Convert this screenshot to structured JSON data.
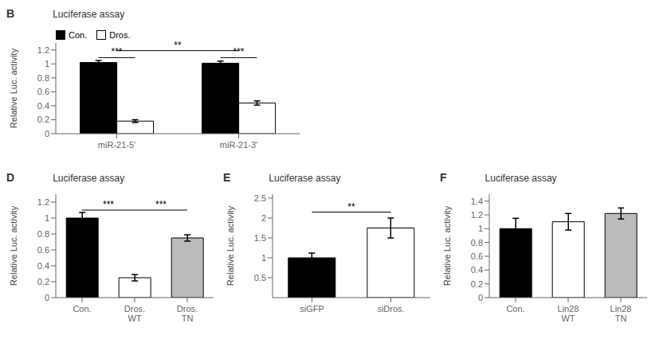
{
  "chart_data": [
    {
      "type": "bar",
      "title": "Luciferase assay",
      "categories": [
        "miR-21-5'",
        "miR-21-3'"
      ],
      "series": [
        {
          "name": "Con.",
          "color": "#000000",
          "values": [
            1.02,
            1.01
          ],
          "errors": [
            0.03,
            0.03
          ]
        },
        {
          "name": "Dros.",
          "color": "#ffffff",
          "values": [
            0.18,
            0.44
          ],
          "errors": [
            0.02,
            0.03
          ]
        }
      ],
      "ylabel": "Relative Luc. activity",
      "ylim": [
        0,
        1.3
      ],
      "yticks": [
        0,
        0.2,
        0.4,
        0.6,
        0.8,
        1.0,
        1.2
      ],
      "legend": "upper left",
      "annotations": [
        {
          "text": "B"
        },
        {
          "text": "***",
          "y": 1.09,
          "category": "miR-21-5'"
        },
        {
          "text": "**",
          "y": 1.19,
          "categories": [
            "miR-21-5'",
            "miR-21-3'"
          ]
        },
        {
          "text": "***",
          "y": 1.09,
          "category": "miR-21-3'"
        }
      ]
    },
    {
      "type": "bar",
      "title": "Luciferase assay",
      "categories": [
        "Con.",
        "Dros.\nWT",
        "Dros.\nTN"
      ],
      "values": [
        1.0,
        0.25,
        0.75
      ],
      "errors": [
        0.07,
        0.04,
        0.04
      ],
      "colors": [
        "#000000",
        "#ffffff",
        "#bbbbbb"
      ],
      "ylabel": "Relative Luc. activity",
      "ylim": [
        0,
        1.3
      ],
      "yticks": [
        0,
        0.2,
        0.4,
        0.6,
        0.8,
        1.0,
        1.2
      ],
      "annotations": [
        {
          "text": "D"
        },
        {
          "text": "***",
          "y": 1.1,
          "categories": [
            "Con.",
            "Dros.\nWT"
          ]
        },
        {
          "text": "***",
          "y": 1.1,
          "categories": [
            "Dros.\nWT",
            "Dros.\nTN"
          ]
        }
      ]
    },
    {
      "type": "bar",
      "title": "Luciferase assay",
      "categories": [
        "siGFP",
        "siDros."
      ],
      "values": [
        1.0,
        1.75
      ],
      "errors": [
        0.12,
        0.25
      ],
      "colors": [
        "#000000",
        "#ffffff"
      ],
      "ylabel": "Relative Luc. activity",
      "ylim": [
        0,
        2.6
      ],
      "yticks": [
        0.5,
        1.0,
        1.5,
        2.0,
        2.5
      ],
      "annotations": [
        {
          "text": "E"
        },
        {
          "text": "**",
          "y": 2.15,
          "categories": [
            "siGFP",
            "siDros."
          ]
        }
      ]
    },
    {
      "type": "bar",
      "title": "Luciferase assay",
      "categories": [
        "Con.",
        "Lin28\nWT",
        "Lin28\nTN"
      ],
      "values": [
        1.0,
        1.1,
        1.22
      ],
      "errors": [
        0.15,
        0.12,
        0.08
      ],
      "colors": [
        "#000000",
        "#ffffff",
        "#bbbbbb"
      ],
      "ylabel": "Relative Luc. activity",
      "ylim": [
        0,
        1.5
      ],
      "yticks": [
        0,
        0.2,
        0.4,
        0.6,
        0.8,
        1.0,
        1.2,
        1.4
      ],
      "annotations": [
        {
          "text": "F"
        }
      ]
    }
  ]
}
